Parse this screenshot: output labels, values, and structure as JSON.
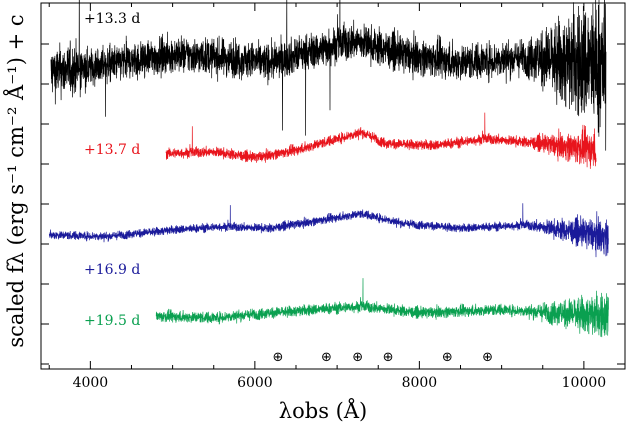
{
  "chart_data": {
    "type": "line",
    "xlabel": "λobs (Å)",
    "ylabel": "scaled fλ (erg s⁻¹ cm⁻² Å⁻¹) + c",
    "xlim": [
      3400,
      10500
    ],
    "x_ticks": [
      "4000",
      "6000",
      "8000",
      "10000"
    ],
    "grid": false,
    "telluric_markers": {
      "symbol": "⊕",
      "x": [
        6280,
        6870,
        7250,
        7620,
        8340,
        8830
      ]
    },
    "series": [
      {
        "name": "+13.3 d",
        "color": "#000000",
        "x_range": [
          3520,
          10270
        ],
        "offset": 3.0,
        "noise": 0.42,
        "continuum": [
          [
            3520,
            0.0
          ],
          [
            4000,
            0.06
          ],
          [
            5000,
            0.22
          ],
          [
            5600,
            0.18
          ],
          [
            6200,
            0.12
          ],
          [
            7000,
            0.34
          ],
          [
            7250,
            0.38
          ],
          [
            7800,
            0.22
          ],
          [
            8500,
            0.12
          ],
          [
            9300,
            0.18
          ],
          [
            10270,
            0.08
          ]
        ]
      },
      {
        "name": "+13.7 d",
        "color": "#e8141c",
        "x_range": [
          4920,
          10150
        ],
        "offset": 2.0,
        "noise": 0.12,
        "continuum": [
          [
            4920,
            0.0
          ],
          [
            5500,
            0.02
          ],
          [
            6000,
            -0.05
          ],
          [
            6500,
            0.04
          ],
          [
            7000,
            0.18
          ],
          [
            7300,
            0.26
          ],
          [
            7600,
            0.12
          ],
          [
            8200,
            0.1
          ],
          [
            8800,
            0.18
          ],
          [
            9300,
            0.14
          ],
          [
            10150,
            0.05
          ]
        ]
      },
      {
        "name": "+16.9 d",
        "color": "#1a1a9a",
        "x_range": [
          3500,
          10300
        ],
        "offset": 1.0,
        "noise": 0.1,
        "continuum": [
          [
            3500,
            0.0
          ],
          [
            4200,
            -0.02
          ],
          [
            5000,
            0.06
          ],
          [
            5600,
            0.1
          ],
          [
            6200,
            0.08
          ],
          [
            6800,
            0.18
          ],
          [
            7300,
            0.26
          ],
          [
            7800,
            0.14
          ],
          [
            8500,
            0.08
          ],
          [
            9300,
            0.12
          ],
          [
            10300,
            -0.02
          ]
        ]
      },
      {
        "name": "+19.5 d",
        "color": "#0aa050",
        "x_range": [
          4800,
          10300
        ],
        "offset": 0.0,
        "noise": 0.13,
        "continuum": [
          [
            4800,
            0.0
          ],
          [
            5500,
            -0.02
          ],
          [
            6200,
            0.04
          ],
          [
            7000,
            0.1
          ],
          [
            7300,
            0.12
          ],
          [
            8000,
            0.04
          ],
          [
            9000,
            0.08
          ],
          [
            10300,
            0.0
          ]
        ]
      }
    ]
  }
}
